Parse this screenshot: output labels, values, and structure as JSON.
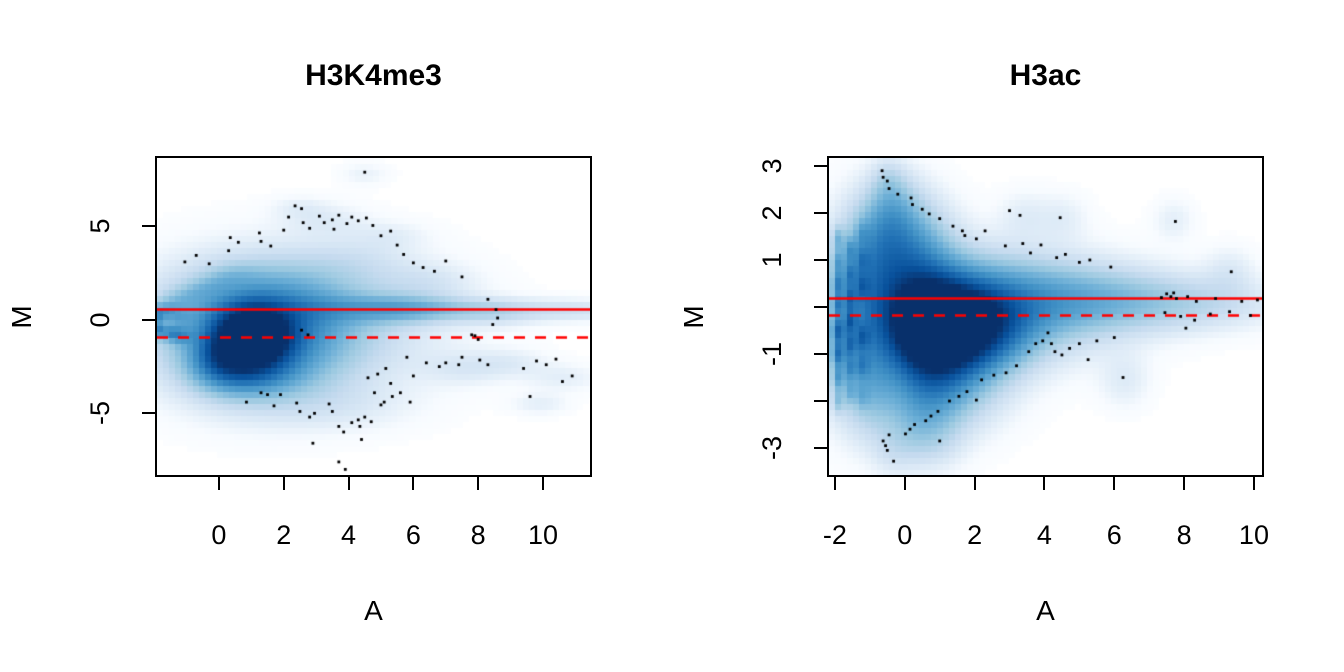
{
  "colors": {
    "background": "#ffffff",
    "axis": "#000000",
    "point": "#000000",
    "reference_line": "#ff0000",
    "density_ramp": [
      "#ffffff",
      "#f7fbff",
      "#deebf7",
      "#c6dbef",
      "#9ecae1",
      "#6baed6",
      "#4292c6",
      "#2171b5",
      "#08519c",
      "#08306b"
    ]
  },
  "density_exponent": 0.55,
  "chart_data": [
    {
      "type": "heatmap",
      "subtype": "smoothScatter-MA-plot",
      "title": "H3K4me3",
      "xlabel": "A",
      "ylabel": "M",
      "xlim": [
        -1.91,
        11.45
      ],
      "ylim": [
        -8.3,
        8.66
      ],
      "x_ticks": [
        {
          "v": 0,
          "label": "0"
        },
        {
          "v": 2,
          "label": "2"
        },
        {
          "v": 4,
          "label": "4"
        },
        {
          "v": 6,
          "label": "6"
        },
        {
          "v": 8,
          "label": "8"
        },
        {
          "v": 10,
          "label": "10"
        }
      ],
      "y_ticks": [
        {
          "v": 5,
          "label": "5"
        },
        {
          "v": 0,
          "label": "0"
        },
        {
          "v": -5,
          "label": "-5"
        }
      ],
      "hlines": [
        {
          "y": 0.6,
          "style": "solid"
        },
        {
          "y": -0.9,
          "style": "dashed"
        }
      ],
      "density_kernels": [
        [
          1.05,
          -0.9,
          0.75,
          1.0,
          1.0
        ],
        [
          1.2,
          -0.85,
          1.7,
          2.0,
          0.5
        ],
        [
          2.3,
          -0.2,
          2.8,
          2.4,
          0.18
        ],
        [
          2.0,
          1.2,
          2.0,
          1.3,
          0.1
        ],
        [
          4.0,
          0.55,
          2.0,
          0.5,
          0.12
        ],
        [
          5.6,
          0.6,
          1.1,
          0.5,
          0.16
        ],
        [
          7.2,
          0.55,
          1.6,
          0.42,
          0.1
        ],
        [
          9.6,
          0.5,
          2.0,
          0.4,
          0.07
        ],
        [
          11.2,
          0.5,
          1.0,
          0.35,
          0.05
        ],
        [
          -1.85,
          0.3,
          0.14,
          0.3,
          0.3
        ],
        [
          -1.85,
          -0.55,
          0.14,
          0.3,
          0.32
        ],
        [
          -1.5,
          -0.7,
          0.2,
          0.25,
          0.22
        ],
        [
          -1.2,
          -0.85,
          0.25,
          0.3,
          0.2
        ],
        [
          -1.6,
          0.5,
          0.2,
          0.25,
          0.15
        ],
        [
          -1.3,
          0.2,
          0.3,
          0.4,
          0.15
        ],
        [
          -1.4,
          0.95,
          0.4,
          0.3,
          0.08
        ],
        [
          -0.9,
          1.35,
          0.4,
          0.3,
          0.07
        ],
        [
          -0.4,
          1.75,
          0.4,
          0.3,
          0.06
        ],
        [
          0.1,
          2.15,
          0.4,
          0.35,
          0.05
        ],
        [
          0.6,
          2.5,
          0.5,
          0.4,
          0.05
        ],
        [
          0.4,
          -2.6,
          0.8,
          0.9,
          0.28
        ],
        [
          0.0,
          -1.9,
          0.5,
          0.8,
          0.2
        ],
        [
          1.3,
          -2.9,
          0.9,
          0.8,
          0.15
        ],
        [
          3.6,
          -4.6,
          1.6,
          0.9,
          0.05
        ],
        [
          7.6,
          -2.6,
          0.9,
          0.6,
          0.06
        ],
        [
          9.9,
          -4.5,
          0.6,
          0.4,
          0.05
        ],
        [
          9.0,
          -2.3,
          0.8,
          0.5,
          0.05
        ],
        [
          10.6,
          -3.1,
          0.8,
          0.5,
          0.05
        ],
        [
          4.5,
          7.8,
          0.5,
          0.4,
          0.04
        ],
        [
          2.5,
          6.0,
          0.6,
          0.4,
          0.04
        ],
        [
          3.3,
          5.3,
          0.9,
          0.6,
          0.05
        ],
        [
          5.3,
          4.5,
          0.8,
          0.5,
          0.04
        ],
        [
          4.2,
          3.2,
          1.2,
          0.8,
          0.05
        ],
        [
          6.5,
          2.0,
          1.0,
          0.7,
          0.06
        ],
        [
          8.6,
          0.3,
          0.8,
          0.5,
          0.05
        ]
      ],
      "outlier_points": [
        [
          -1.05,
          3.1
        ],
        [
          -0.7,
          3.45
        ],
        [
          -0.3,
          3.0
        ],
        [
          0.3,
          3.7
        ],
        [
          0.35,
          4.4
        ],
        [
          0.6,
          4.15
        ],
        [
          1.25,
          4.65
        ],
        [
          1.3,
          4.2
        ],
        [
          1.6,
          3.95
        ],
        [
          2.0,
          4.8
        ],
        [
          2.15,
          5.5
        ],
        [
          2.35,
          6.1
        ],
        [
          2.55,
          5.95
        ],
        [
          2.6,
          5.2
        ],
        [
          2.8,
          4.9
        ],
        [
          3.1,
          5.55
        ],
        [
          3.25,
          5.2
        ],
        [
          3.5,
          5.35
        ],
        [
          3.55,
          4.85
        ],
        [
          3.7,
          5.6
        ],
        [
          3.95,
          5.15
        ],
        [
          4.1,
          5.5
        ],
        [
          4.3,
          5.3
        ],
        [
          4.5,
          7.9
        ],
        [
          4.55,
          5.45
        ],
        [
          4.75,
          5.05
        ],
        [
          5.0,
          4.5
        ],
        [
          5.3,
          4.75
        ],
        [
          5.5,
          4.0
        ],
        [
          5.7,
          3.5
        ],
        [
          6.0,
          3.05
        ],
        [
          6.3,
          2.8
        ],
        [
          6.65,
          2.6
        ],
        [
          7.0,
          3.15
        ],
        [
          7.5,
          2.3
        ],
        [
          8.3,
          1.1
        ],
        [
          8.55,
          0.55
        ],
        [
          8.6,
          0.1
        ],
        [
          8.45,
          -0.25
        ],
        [
          7.9,
          -0.85
        ],
        [
          2.55,
          -0.55
        ],
        [
          2.75,
          -0.8
        ],
        [
          0.85,
          -4.4
        ],
        [
          1.3,
          -3.9
        ],
        [
          1.5,
          -4.0
        ],
        [
          1.9,
          -4.0
        ],
        [
          1.7,
          -4.6
        ],
        [
          2.4,
          -4.45
        ],
        [
          2.5,
          -4.9
        ],
        [
          2.8,
          -5.2
        ],
        [
          2.95,
          -5.0
        ],
        [
          3.4,
          -4.5
        ],
        [
          3.5,
          -4.9
        ],
        [
          3.7,
          -5.7
        ],
        [
          3.85,
          -6.0
        ],
        [
          4.1,
          -5.5
        ],
        [
          4.3,
          -5.35
        ],
        [
          4.35,
          -5.7
        ],
        [
          4.5,
          -5.2
        ],
        [
          4.7,
          -5.45
        ],
        [
          3.7,
          -7.6
        ],
        [
          3.9,
          -8.0
        ],
        [
          2.9,
          -6.6
        ],
        [
          4.4,
          -6.4
        ],
        [
          5.0,
          -4.55
        ],
        [
          5.1,
          -4.4
        ],
        [
          5.3,
          -3.4
        ],
        [
          5.35,
          -4.1
        ],
        [
          5.6,
          -3.9
        ],
        [
          5.9,
          -4.4
        ],
        [
          5.8,
          -2.0
        ],
        [
          6.0,
          -3.0
        ],
        [
          6.4,
          -2.3
        ],
        [
          6.8,
          -2.5
        ],
        [
          7.0,
          -2.3
        ],
        [
          7.4,
          -2.4
        ],
        [
          7.5,
          -2.0
        ],
        [
          8.05,
          -2.15
        ],
        [
          8.3,
          -2.4
        ],
        [
          7.8,
          -0.8
        ],
        [
          8.0,
          -1.05
        ],
        [
          9.6,
          -4.1
        ],
        [
          10.9,
          -3.0
        ],
        [
          10.1,
          -2.4
        ],
        [
          10.4,
          -2.1
        ],
        [
          9.8,
          -2.2
        ],
        [
          10.6,
          -3.3
        ],
        [
          9.4,
          -2.6
        ],
        [
          4.9,
          -2.9
        ],
        [
          5.15,
          -2.6
        ],
        [
          4.6,
          -3.1
        ],
        [
          4.8,
          -3.9
        ]
      ]
    },
    {
      "type": "heatmap",
      "subtype": "smoothScatter-MA-plot",
      "title": "H3ac",
      "xlabel": "A",
      "ylabel": "M",
      "xlim": [
        -2.17,
        10.23
      ],
      "ylim": [
        -3.574,
        3.17
      ],
      "x_ticks": [
        {
          "v": -2,
          "label": "-2"
        },
        {
          "v": 0,
          "label": "0"
        },
        {
          "v": 2,
          "label": "2"
        },
        {
          "v": 4,
          "label": "4"
        },
        {
          "v": 6,
          "label": "6"
        },
        {
          "v": 8,
          "label": "8"
        },
        {
          "v": 10,
          "label": "10"
        }
      ],
      "y_ticks": [
        {
          "v": 3,
          "label": "3"
        },
        {
          "v": 2,
          "label": "2"
        },
        {
          "v": 1,
          "label": "1"
        },
        {
          "v": 0,
          "label": ""
        },
        {
          "v": -1,
          "label": "-1"
        },
        {
          "v": -2,
          "label": ""
        },
        {
          "v": -3,
          "label": "-3"
        }
      ],
      "hlines": [
        {
          "y": 0.2,
          "style": "solid"
        },
        {
          "y": -0.17,
          "style": "dashed"
        }
      ],
      "density_kernels": [
        [
          1.5,
          -0.4,
          1.15,
          0.6,
          1.0
        ],
        [
          0.7,
          -0.55,
          0.75,
          0.75,
          0.6
        ],
        [
          0.2,
          0.6,
          0.9,
          0.9,
          0.35
        ],
        [
          0.0,
          1.4,
          0.7,
          0.7,
          0.2
        ],
        [
          -0.3,
          2.2,
          0.45,
          0.5,
          0.12
        ],
        [
          -0.5,
          2.7,
          0.3,
          0.3,
          0.07
        ],
        [
          2.3,
          0.0,
          2.0,
          0.75,
          0.35
        ],
        [
          4.8,
          0.15,
          2.0,
          0.5,
          0.22
        ],
        [
          7.0,
          0.1,
          1.8,
          0.4,
          0.11
        ],
        [
          9.0,
          0.05,
          1.5,
          0.35,
          0.06
        ],
        [
          1.2,
          -1.4,
          1.1,
          0.75,
          0.3
        ],
        [
          0.6,
          -2.1,
          0.7,
          0.6,
          0.18
        ],
        [
          0.2,
          -2.8,
          0.5,
          0.45,
          0.08
        ],
        [
          -1.9,
          1.45,
          0.11,
          0.17,
          0.18
        ],
        [
          -1.9,
          0.95,
          0.11,
          0.17,
          0.22
        ],
        [
          -1.9,
          0.5,
          0.11,
          0.17,
          0.3
        ],
        [
          -1.9,
          0.05,
          0.11,
          0.17,
          0.3
        ],
        [
          -1.9,
          -0.5,
          0.12,
          0.18,
          0.42
        ],
        [
          -1.9,
          -1.0,
          0.12,
          0.18,
          0.38
        ],
        [
          -1.9,
          -1.5,
          0.11,
          0.17,
          0.25
        ],
        [
          -1.9,
          -2.0,
          0.11,
          0.17,
          0.15
        ],
        [
          -1.55,
          1.2,
          0.11,
          0.17,
          0.2
        ],
        [
          -1.55,
          0.7,
          0.11,
          0.17,
          0.25
        ],
        [
          -1.55,
          0.2,
          0.11,
          0.17,
          0.3
        ],
        [
          -1.55,
          -0.3,
          0.11,
          0.17,
          0.35
        ],
        [
          -1.55,
          -0.8,
          0.11,
          0.17,
          0.3
        ],
        [
          -1.55,
          -1.3,
          0.11,
          0.17,
          0.22
        ],
        [
          -1.55,
          -1.8,
          0.11,
          0.17,
          0.13
        ],
        [
          -1.2,
          1.55,
          0.12,
          0.18,
          0.12
        ],
        [
          -1.2,
          1.0,
          0.12,
          0.18,
          0.18
        ],
        [
          -1.2,
          0.45,
          0.12,
          0.18,
          0.22
        ],
        [
          -1.2,
          -0.65,
          0.12,
          0.18,
          0.25
        ],
        [
          -1.2,
          -1.25,
          0.12,
          0.18,
          0.18
        ],
        [
          -1.2,
          -1.9,
          0.12,
          0.18,
          0.1
        ],
        [
          -1.3,
          0.0,
          0.8,
          1.2,
          0.22
        ],
        [
          -1.4,
          -1.2,
          0.6,
          0.9,
          0.15
        ],
        [
          -1.0,
          1.0,
          0.6,
          0.8,
          0.15
        ],
        [
          -0.8,
          -1.8,
          0.5,
          0.7,
          0.12
        ],
        [
          -0.6,
          1.7,
          0.5,
          0.6,
          0.1
        ],
        [
          3.4,
          1.95,
          0.5,
          0.35,
          0.05
        ],
        [
          4.5,
          1.9,
          0.5,
          0.35,
          0.05
        ],
        [
          7.7,
          1.85,
          0.4,
          0.3,
          0.05
        ],
        [
          9.3,
          0.75,
          0.5,
          0.35,
          0.06
        ],
        [
          6.3,
          -1.55,
          0.5,
          0.4,
          0.06
        ],
        [
          1.0,
          -2.9,
          0.5,
          0.4,
          0.05
        ],
        [
          -0.4,
          -3.1,
          0.4,
          0.35,
          0.05
        ]
      ],
      "outlier_points": [
        [
          -0.65,
          2.9
        ],
        [
          -0.62,
          2.76
        ],
        [
          -0.5,
          2.68
        ],
        [
          -0.45,
          2.52
        ],
        [
          -0.2,
          2.4
        ],
        [
          0.18,
          2.32
        ],
        [
          0.22,
          2.18
        ],
        [
          0.5,
          2.08
        ],
        [
          0.7,
          1.98
        ],
        [
          1.0,
          1.88
        ],
        [
          1.38,
          1.72
        ],
        [
          1.65,
          1.62
        ],
        [
          1.72,
          1.52
        ],
        [
          2.05,
          1.45
        ],
        [
          2.3,
          1.62
        ],
        [
          2.88,
          1.3
        ],
        [
          3.0,
          2.05
        ],
        [
          3.38,
          1.35
        ],
        [
          3.6,
          1.15
        ],
        [
          3.9,
          1.32
        ],
        [
          4.35,
          1.05
        ],
        [
          4.6,
          1.12
        ],
        [
          5.0,
          0.95
        ],
        [
          5.3,
          1.0
        ],
        [
          5.9,
          0.85
        ],
        [
          3.3,
          1.95
        ],
        [
          4.45,
          1.9
        ],
        [
          7.75,
          1.82
        ],
        [
          9.35,
          0.75
        ],
        [
          7.35,
          0.2
        ],
        [
          7.5,
          0.28
        ],
        [
          7.62,
          0.22
        ],
        [
          7.7,
          0.3
        ],
        [
          7.78,
          0.18
        ],
        [
          8.1,
          0.22
        ],
        [
          8.35,
          0.12
        ],
        [
          8.9,
          0.18
        ],
        [
          9.65,
          0.12
        ],
        [
          7.45,
          -0.12
        ],
        [
          7.9,
          -0.2
        ],
        [
          8.3,
          -0.28
        ],
        [
          8.75,
          -0.15
        ],
        [
          9.3,
          -0.1
        ],
        [
          9.9,
          -0.18
        ],
        [
          8.05,
          -0.45
        ],
        [
          10.1,
          0.15
        ],
        [
          -0.32,
          -3.28
        ],
        [
          -0.5,
          -3.05
        ],
        [
          -0.55,
          -2.95
        ],
        [
          -0.62,
          -2.85
        ],
        [
          -0.45,
          -2.72
        ],
        [
          0.02,
          -2.7
        ],
        [
          0.15,
          -2.6
        ],
        [
          0.28,
          -2.5
        ],
        [
          0.6,
          -2.42
        ],
        [
          0.75,
          -2.32
        ],
        [
          0.95,
          -2.22
        ],
        [
          1.0,
          -2.85
        ],
        [
          1.28,
          -2.0
        ],
        [
          1.55,
          -1.9
        ],
        [
          1.78,
          -1.8
        ],
        [
          2.05,
          -1.98
        ],
        [
          2.2,
          -1.55
        ],
        [
          2.55,
          -1.45
        ],
        [
          2.9,
          -1.4
        ],
        [
          3.2,
          -1.25
        ],
        [
          3.75,
          -0.78
        ],
        [
          3.95,
          -0.72
        ],
        [
          4.2,
          -0.78
        ],
        [
          4.3,
          -0.95
        ],
        [
          4.5,
          -1.02
        ],
        [
          4.72,
          -0.88
        ],
        [
          5.0,
          -0.78
        ],
        [
          5.25,
          -1.12
        ],
        [
          5.5,
          -0.72
        ],
        [
          6.25,
          -1.5
        ],
        [
          4.1,
          -0.55
        ],
        [
          3.55,
          -0.95
        ],
        [
          6.0,
          -0.65
        ]
      ]
    }
  ]
}
